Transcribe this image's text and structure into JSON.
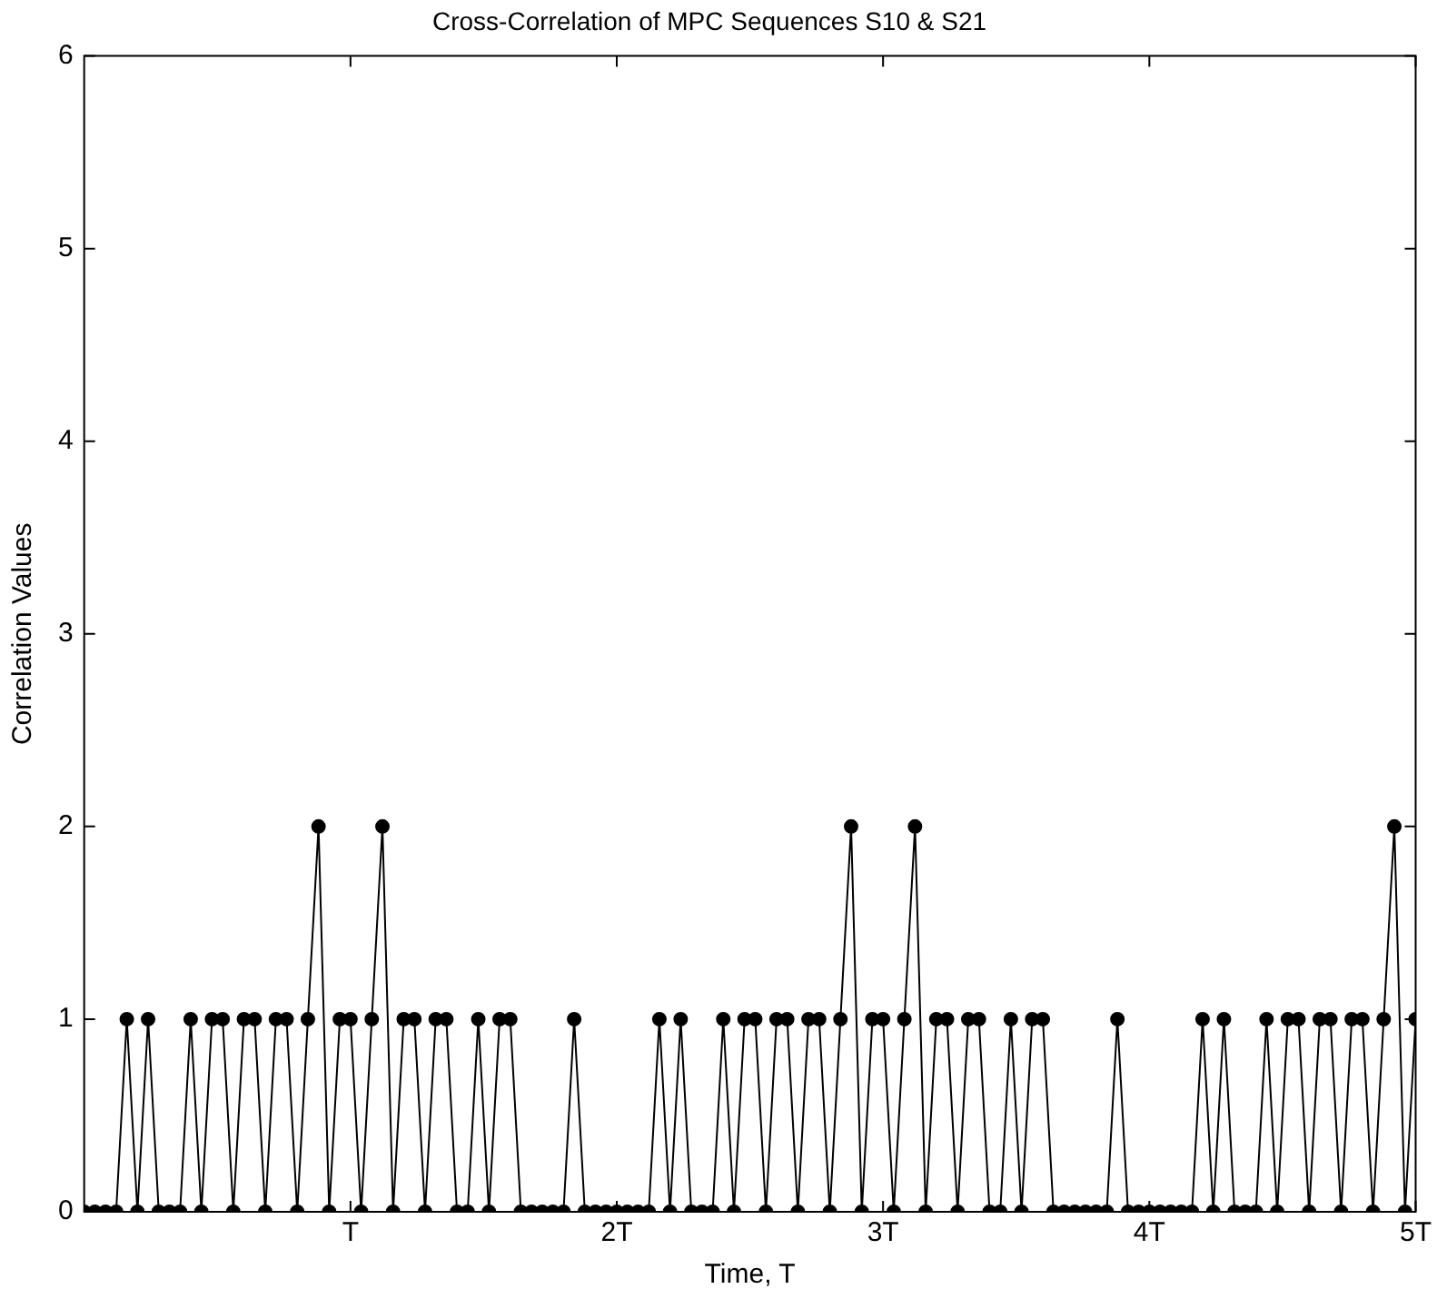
{
  "chart_data": {
    "type": "line",
    "title": "Cross-Correlation of MPC Sequences S10 & S21",
    "xlabel": "Time, T",
    "ylabel": "Correlation Values",
    "x": [
      0,
      0.04,
      0.08,
      0.12,
      0.16,
      0.2,
      0.24,
      0.28,
      0.32,
      0.36,
      0.4,
      0.44,
      0.48,
      0.52,
      0.56,
      0.6,
      0.64,
      0.68,
      0.72,
      0.76,
      0.8,
      0.84,
      0.88,
      0.92,
      0.96,
      1,
      1.04,
      1.08,
      1.12,
      1.16,
      1.2,
      1.24,
      1.28,
      1.32,
      1.36,
      1.4,
      1.44,
      1.48,
      1.52,
      1.56,
      1.6,
      1.64,
      1.68,
      1.72,
      1.76,
      1.8,
      1.84,
      1.88,
      1.92,
      1.96,
      2,
      2.04,
      2.08,
      2.12,
      2.16,
      2.2,
      2.24,
      2.28,
      2.32,
      2.36,
      2.4,
      2.44,
      2.48,
      2.52,
      2.56,
      2.6,
      2.64,
      2.68,
      2.72,
      2.76,
      2.8,
      2.84,
      2.88,
      2.92,
      2.96,
      3,
      3.04,
      3.08,
      3.12,
      3.16,
      3.2,
      3.24,
      3.28,
      3.32,
      3.36,
      3.4,
      3.44,
      3.48,
      3.52,
      3.56,
      3.6,
      3.64,
      3.68,
      3.72,
      3.76,
      3.8,
      3.84,
      3.88,
      3.92,
      3.96,
      4,
      4.04,
      4.08,
      4.12,
      4.16,
      4.2,
      4.24,
      4.28,
      4.32,
      4.36,
      4.4,
      4.44,
      4.48,
      4.52,
      4.56,
      4.6,
      4.64,
      4.68,
      4.72,
      4.76,
      4.8,
      4.84,
      4.88,
      4.92,
      4.96,
      5
    ],
    "series": [
      {
        "color": "#000000",
        "values": [
          0,
          0,
          0,
          0,
          1,
          0,
          1,
          0,
          0,
          0,
          1,
          0,
          1,
          1,
          0,
          1,
          1,
          0,
          1,
          1,
          0,
          1,
          2,
          0,
          1,
          1,
          0,
          1,
          2,
          0,
          1,
          1,
          0,
          1,
          1,
          0,
          0,
          1,
          0,
          1,
          1,
          0,
          0,
          0,
          0,
          0,
          1,
          0,
          0,
          0,
          0,
          0,
          0,
          0,
          1,
          0,
          1,
          0,
          0,
          0,
          1,
          0,
          1,
          1,
          0,
          1,
          1,
          0,
          1,
          1,
          0,
          1,
          2,
          0,
          1,
          1,
          0,
          1,
          2,
          0,
          1,
          1,
          0,
          1,
          1,
          0,
          0,
          1,
          0,
          1,
          1,
          0,
          0,
          0,
          0,
          0,
          0,
          1,
          0,
          0,
          0,
          0,
          0,
          0,
          0,
          1,
          0,
          1,
          0,
          0,
          0,
          1,
          0,
          1,
          1,
          0,
          1,
          1,
          0,
          1,
          1,
          0,
          1,
          2,
          0,
          1
        ]
      }
    ],
    "xlim": [
      0,
      5
    ],
    "xticks": [
      {
        "value": 1,
        "label": "T"
      },
      {
        "value": 2,
        "label": "2T"
      },
      {
        "value": 3,
        "label": "3T"
      },
      {
        "value": 4,
        "label": "4T"
      },
      {
        "value": 5,
        "label": "5T"
      }
    ],
    "ylim": [
      0,
      6
    ],
    "yticks": [
      0,
      1,
      2,
      3,
      4,
      5,
      6
    ],
    "grid": false,
    "legend": false,
    "marker": "circle",
    "line_style": "solid"
  }
}
